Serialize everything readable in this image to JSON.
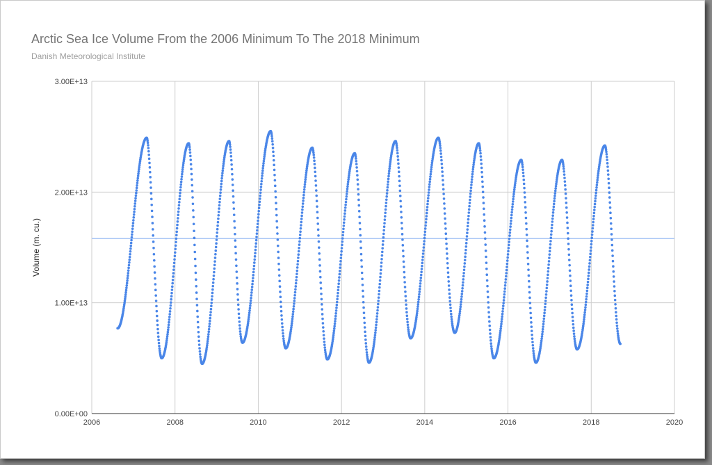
{
  "chart_data": {
    "type": "scatter",
    "title": "Arctic Sea Ice Volume From the 2006 Minimum To The 2018 Minimum",
    "subtitle": "Danish Meteorological Institute",
    "xlabel": "",
    "ylabel": "Volume (m. cu.)",
    "xlim": [
      2006,
      2020
    ],
    "ylim": [
      0,
      30000000000000
    ],
    "x_ticks": [
      2006,
      2008,
      2010,
      2012,
      2014,
      2016,
      2018,
      2020
    ],
    "x_tick_labels": [
      "2006",
      "2008",
      "2010",
      "2012",
      "2014",
      "2016",
      "2018",
      "2020"
    ],
    "y_ticks": [
      0,
      10000000000000,
      20000000000000,
      30000000000000
    ],
    "y_tick_labels": [
      "0.00E+00",
      "1.00E+13",
      "2.00E+13",
      "3.00E+13"
    ],
    "grid": true,
    "reference_line": {
      "value": 15800000000000,
      "color": "#a9c6f5"
    },
    "series": [
      {
        "color": "#4a86e8",
        "minima": [
          {
            "x": 2006.62,
            "y": 7700000000000
          },
          {
            "x": 2007.68,
            "y": 5000000000000
          },
          {
            "x": 2008.65,
            "y": 4500000000000
          },
          {
            "x": 2009.62,
            "y": 6400000000000
          },
          {
            "x": 2010.66,
            "y": 5900000000000
          },
          {
            "x": 2011.66,
            "y": 4900000000000
          },
          {
            "x": 2012.66,
            "y": 4600000000000
          },
          {
            "x": 2013.66,
            "y": 6800000000000
          },
          {
            "x": 2014.72,
            "y": 7300000000000
          },
          {
            "x": 2015.66,
            "y": 5000000000000
          },
          {
            "x": 2016.67,
            "y": 4600000000000
          },
          {
            "x": 2017.66,
            "y": 5800000000000
          },
          {
            "x": 2018.7,
            "y": 6300000000000
          }
        ],
        "maxima": [
          {
            "x": 2007.32,
            "y": 24900000000000
          },
          {
            "x": 2008.33,
            "y": 24400000000000
          },
          {
            "x": 2009.3,
            "y": 24600000000000
          },
          {
            "x": 2010.3,
            "y": 25500000000000
          },
          {
            "x": 2011.3,
            "y": 24000000000000
          },
          {
            "x": 2012.32,
            "y": 23500000000000
          },
          {
            "x": 2013.3,
            "y": 24600000000000
          },
          {
            "x": 2014.33,
            "y": 24900000000000
          },
          {
            "x": 2015.3,
            "y": 24400000000000
          },
          {
            "x": 2016.32,
            "y": 22900000000000
          },
          {
            "x": 2017.3,
            "y": 22900000000000
          },
          {
            "x": 2018.33,
            "y": 24200000000000
          }
        ]
      }
    ]
  },
  "colors": {
    "series": "#4a86e8",
    "reference_line": "#a9c6f5",
    "grid": "#cccccc",
    "title": "#757575",
    "subtitle": "#9e9e9e"
  }
}
